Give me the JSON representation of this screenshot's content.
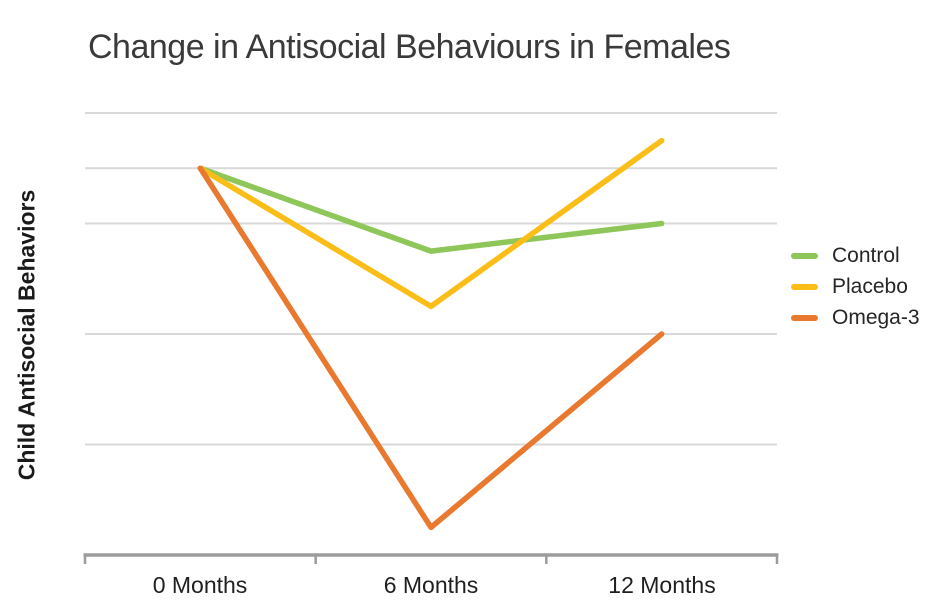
{
  "title": "Change in Antisocial Behaviours in Females",
  "y_axis": {
    "label": "Child Antisocial Behaviors",
    "tick_labels_visible": false
  },
  "x_axis": {
    "labels": [
      "0 Months",
      "6 Months",
      "12 Months"
    ]
  },
  "legend": {
    "position": "right-middle",
    "items": [
      "Control",
      "Placebo",
      "Omega-3"
    ]
  },
  "colors": {
    "gridline": "#d9d9d9",
    "axis": "#9c9c9c",
    "title_text": "#3a3a3a",
    "axis_label_text": "#1f1f1f",
    "legend_text": "#262626",
    "control": "#8ec65a",
    "placebo": "#fbbe18",
    "omega3": "#e8792f"
  },
  "chart_data": {
    "type": "line",
    "title": "Change in Antisocial Behaviours in Females",
    "categories": [
      "0 Months",
      "6 Months",
      "12 Months"
    ],
    "series": [
      {
        "name": "Control",
        "color": "#8ec65a",
        "values": [
          3.5,
          2.75,
          3.0
        ]
      },
      {
        "name": "Placebo",
        "color": "#fbbe18",
        "values": [
          3.5,
          2.25,
          3.75
        ]
      },
      {
        "name": "Omega-3",
        "color": "#e8792f",
        "values": [
          3.5,
          0.25,
          2.0
        ]
      }
    ],
    "xlabel": "",
    "ylabel": "Child Antisocial Behaviors",
    "ylim": [
      0,
      4.2
    ],
    "y_ticks_labeled": false,
    "y_units": "relative (axis unlabeled; values estimated from gridline spacing, baseline = 0)",
    "gridlines_y_values": [
      4.0,
      3.5,
      3.0,
      2.0,
      1.0
    ],
    "grid": "horizontal-only",
    "legend_position": "right"
  }
}
